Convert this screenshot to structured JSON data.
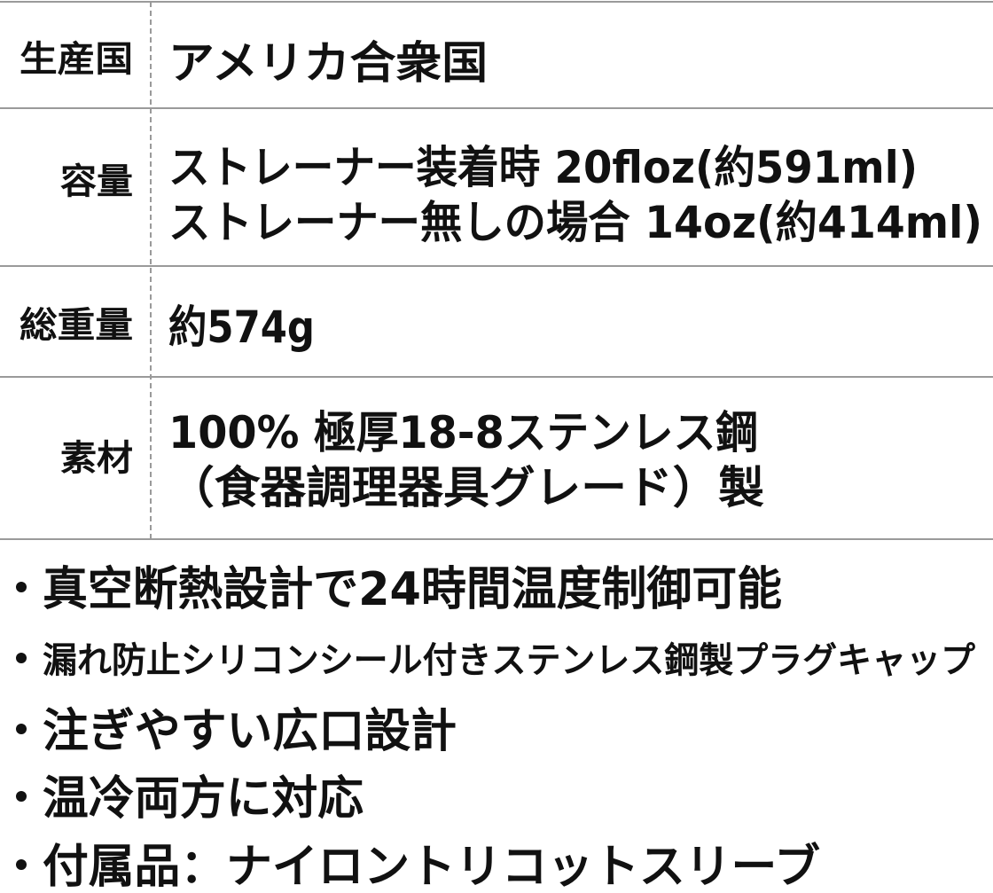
{
  "table": {
    "rows": [
      {
        "label": "生産国",
        "lines": [
          "アメリカ合衆国"
        ]
      },
      {
        "label": "容量",
        "lines": [
          "ストレーナー装着時 20floz(約591ml)",
          "ストレーナー無しの場合 14oz(約414ml)"
        ]
      },
      {
        "label": "総重量",
        "lines": [
          "約574g"
        ]
      },
      {
        "label": "素材",
        "lines": [
          "100% 極厚18-8ステンレス鋼",
          "（食器調理器具グレード）製"
        ]
      }
    ]
  },
  "bullets": [
    "真空断熱設計で24時間温度制御可能",
    "漏れ防止シリコンシール付きステンレス鋼製プラグキャップ",
    "注ぎやすい広口設計",
    "温冷両方に対応",
    "付属品：ナイロントリコットスリーブ"
  ]
}
